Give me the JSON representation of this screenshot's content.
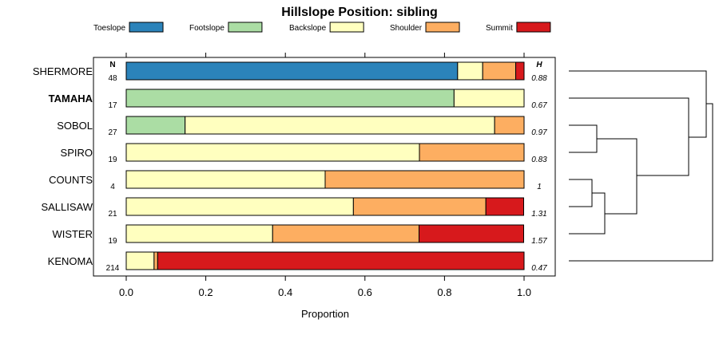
{
  "chart_data": {
    "type": "bar",
    "orientation": "horizontal",
    "stacked": true,
    "title": "Hillslope Position: sibling",
    "xlabel": "Proportion",
    "ylabel": "",
    "xlim": [
      0,
      1
    ],
    "xticks": [
      "0.0",
      "0.2",
      "0.4",
      "0.6",
      "0.8",
      "1.0"
    ],
    "legend_position": "top",
    "n_header": "N",
    "h_header": "H",
    "series": [
      {
        "name": "Toeslope",
        "color": "#2b83ba"
      },
      {
        "name": "Footslope",
        "color": "#abdda4"
      },
      {
        "name": "Backslope",
        "color": "#ffffbf"
      },
      {
        "name": "Shoulder",
        "color": "#fdae61"
      },
      {
        "name": "Summit",
        "color": "#d7191c"
      }
    ],
    "rows": [
      {
        "label": "SHERMORE",
        "bold": false,
        "n": "48",
        "h": "0.88",
        "values": [
          0.833,
          0,
          0.063,
          0.083,
          0.021
        ]
      },
      {
        "label": "TAMAHA",
        "bold": true,
        "n": "17",
        "h": "0.67",
        "values": [
          0,
          0.824,
          0.176,
          0,
          0
        ]
      },
      {
        "label": "SOBOL",
        "bold": false,
        "n": "27",
        "h": "0.97",
        "values": [
          0,
          0.148,
          0.778,
          0.074,
          0
        ]
      },
      {
        "label": "SPIRO",
        "bold": false,
        "n": "19",
        "h": "0.83",
        "values": [
          0,
          0,
          0.737,
          0.263,
          0
        ]
      },
      {
        "label": "COUNTS",
        "bold": false,
        "n": "4",
        "h": "1",
        "values": [
          0,
          0,
          0.5,
          0.5,
          0
        ]
      },
      {
        "label": "SALLISAW",
        "bold": false,
        "n": "21",
        "h": "1.31",
        "values": [
          0,
          0,
          0.571,
          0.333,
          0.095
        ]
      },
      {
        "label": "WISTER",
        "bold": false,
        "n": "19",
        "h": "1.57",
        "values": [
          0,
          0,
          0.368,
          0.368,
          0.263
        ]
      },
      {
        "label": "KENOMA",
        "bold": false,
        "n": "214",
        "h": "0.47",
        "values": [
          0,
          0,
          0.07,
          0.009,
          0.921
        ]
      }
    ],
    "dendrogram": "right"
  }
}
